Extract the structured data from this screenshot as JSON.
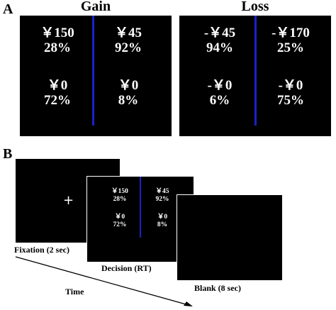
{
  "panel_a": {
    "letter": "A",
    "gain": {
      "title": "Gain",
      "options": [
        {
          "amount": "￥150",
          "prob": "28%"
        },
        {
          "amount": "￥45",
          "prob": "92%"
        },
        {
          "amount": "￥0",
          "prob": "72%"
        },
        {
          "amount": "￥0",
          "prob": "8%"
        }
      ]
    },
    "loss": {
      "title": "Loss",
      "options": [
        {
          "amount": "-￥45",
          "prob": "94%"
        },
        {
          "amount": "-￥170",
          "prob": "25%"
        },
        {
          "amount": "-￥0",
          "prob": "6%"
        },
        {
          "amount": "-￥0",
          "prob": "75%"
        }
      ]
    }
  },
  "panel_b": {
    "letter": "B",
    "fixation": {
      "symbol": "+",
      "caption": "Fixation (2 sec)"
    },
    "decision": {
      "caption": "Decision (RT)",
      "options": [
        {
          "amount": "￥150",
          "prob": "28%"
        },
        {
          "amount": "￥45",
          "prob": "92%"
        },
        {
          "amount": "￥0",
          "prob": "72%"
        },
        {
          "amount": "￥0",
          "prob": "8%"
        }
      ]
    },
    "blank": {
      "caption": "Blank (8 sec)"
    },
    "time_label": "Time"
  },
  "colors": {
    "screen": "#000000",
    "divider": "#1a22c8",
    "text_on_screen": "#ffffff"
  }
}
